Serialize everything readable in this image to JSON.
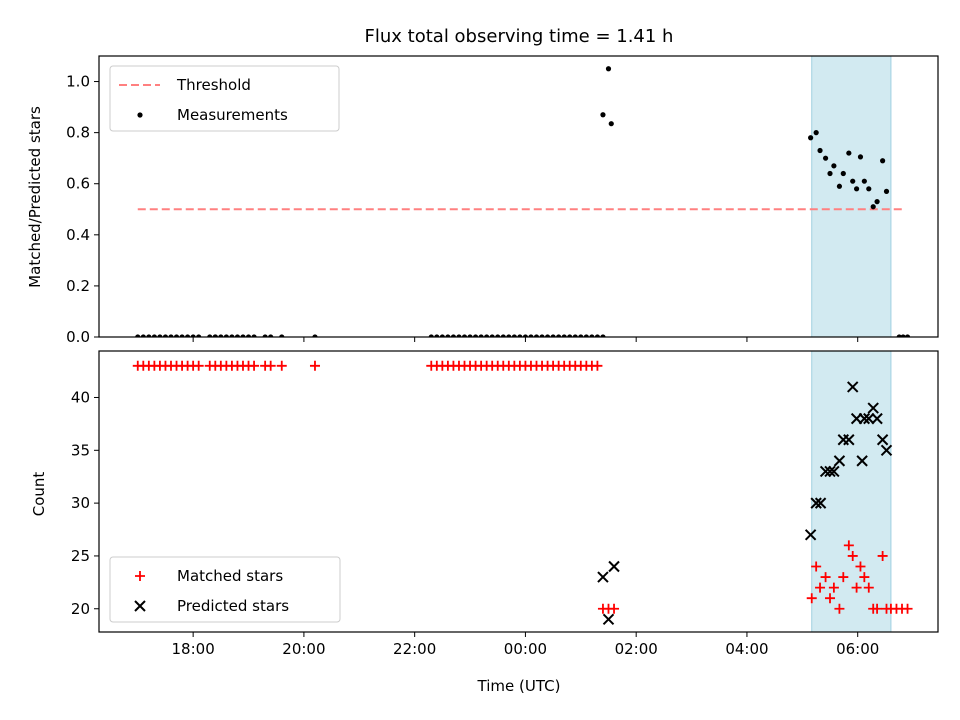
{
  "chart_data": [
    {
      "type": "scatter",
      "title": "Flux total observing time = 1.41 h",
      "ylabel": "Matched/Predicted stars",
      "xlabel": "",
      "x_unit": "hours since 17:00 UTC on first night",
      "xlim": [
        -0.7,
        14.45
      ],
      "ylim": [
        0,
        1.1
      ],
      "yticks": [
        0.0,
        0.2,
        0.4,
        0.6,
        0.8,
        1.0
      ],
      "ytick_labels": [
        "0.0",
        "0.2",
        "0.4",
        "0.6",
        "0.8",
        "1.0"
      ],
      "grid": false,
      "legend_position": "top-left",
      "shaded_region": {
        "x0": 12.17,
        "x1": 13.6,
        "color": "#add8e6"
      },
      "series": [
        {
          "name": "Threshold",
          "style": "dashed-line",
          "color": "#ff8080",
          "points": [
            [
              0.0,
              0.5
            ],
            [
              13.85,
              0.5
            ]
          ]
        },
        {
          "name": "Measurements",
          "style": "dot",
          "color": "#000000",
          "points": [
            [
              0.0,
              0
            ],
            [
              0.1,
              0
            ],
            [
              0.2,
              0
            ],
            [
              0.3,
              0
            ],
            [
              0.4,
              0
            ],
            [
              0.5,
              0
            ],
            [
              0.6,
              0
            ],
            [
              0.7,
              0
            ],
            [
              0.8,
              0
            ],
            [
              0.9,
              0
            ],
            [
              1.0,
              0
            ],
            [
              1.1,
              0
            ],
            [
              1.3,
              0
            ],
            [
              1.4,
              0
            ],
            [
              1.4,
              0
            ],
            [
              1.5,
              0
            ],
            [
              1.6,
              0
            ],
            [
              1.7,
              0
            ],
            [
              1.8,
              0
            ],
            [
              1.9,
              0
            ],
            [
              2.0,
              0
            ],
            [
              2.1,
              0
            ],
            [
              2.3,
              0
            ],
            [
              2.4,
              0
            ],
            [
              2.6,
              0
            ],
            [
              3.2,
              0
            ],
            [
              5.3,
              0
            ],
            [
              5.4,
              0
            ],
            [
              5.5,
              0
            ],
            [
              5.6,
              0
            ],
            [
              5.7,
              0
            ],
            [
              5.8,
              0
            ],
            [
              5.9,
              0
            ],
            [
              6.0,
              0
            ],
            [
              6.1,
              0
            ],
            [
              6.2,
              0
            ],
            [
              6.3,
              0
            ],
            [
              6.4,
              0
            ],
            [
              6.5,
              0
            ],
            [
              6.6,
              0
            ],
            [
              6.7,
              0
            ],
            [
              6.8,
              0
            ],
            [
              6.9,
              0
            ],
            [
              7.0,
              0
            ],
            [
              7.1,
              0
            ],
            [
              7.2,
              0
            ],
            [
              7.3,
              0
            ],
            [
              7.4,
              0
            ],
            [
              7.5,
              0
            ],
            [
              7.6,
              0
            ],
            [
              7.7,
              0
            ],
            [
              7.8,
              0
            ],
            [
              7.9,
              0
            ],
            [
              8.0,
              0
            ],
            [
              8.1,
              0
            ],
            [
              8.2,
              0
            ],
            [
              8.3,
              0
            ],
            [
              8.4,
              0
            ],
            [
              8.4,
              0.87
            ],
            [
              8.5,
              1.05
            ],
            [
              8.55,
              0.835
            ],
            [
              12.15,
              0.78
            ],
            [
              12.25,
              0.8
            ],
            [
              12.32,
              0.73
            ],
            [
              12.42,
              0.7
            ],
            [
              12.5,
              0.64
            ],
            [
              12.57,
              0.67
            ],
            [
              12.67,
              0.59
            ],
            [
              12.74,
              0.64
            ],
            [
              12.84,
              0.72
            ],
            [
              12.91,
              0.61
            ],
            [
              12.98,
              0.58
            ],
            [
              13.05,
              0.705
            ],
            [
              13.12,
              0.61
            ],
            [
              13.2,
              0.58
            ],
            [
              13.28,
              0.51
            ],
            [
              13.35,
              0.53
            ],
            [
              13.45,
              0.69
            ],
            [
              13.52,
              0.57
            ],
            [
              13.75,
              0
            ],
            [
              13.82,
              0
            ],
            [
              13.9,
              0
            ]
          ]
        }
      ]
    },
    {
      "type": "scatter",
      "title": "",
      "ylabel": "Count",
      "xlabel": "Time (UTC)",
      "x_unit": "hours since 17:00 UTC on first night",
      "xlim": [
        -0.7,
        14.45
      ],
      "ylim": [
        17.8,
        44.4
      ],
      "xticks": [
        1,
        3,
        5,
        7,
        9,
        11,
        13
      ],
      "xtick_labels": [
        "18:00",
        "20:00",
        "22:00",
        "00:00",
        "02:00",
        "04:00",
        "06:00"
      ],
      "yticks": [
        20,
        25,
        30,
        35,
        40
      ],
      "ytick_labels": [
        "20",
        "25",
        "30",
        "35",
        "40"
      ],
      "grid": false,
      "legend_position": "bottom-left",
      "shaded_region": {
        "x0": 12.17,
        "x1": 13.6,
        "color": "#add8e6"
      },
      "series": [
        {
          "name": "Matched stars",
          "style": "plus",
          "color": "#ff0000",
          "points": [
            [
              0.0,
              43
            ],
            [
              0.1,
              43
            ],
            [
              0.2,
              43
            ],
            [
              0.3,
              43
            ],
            [
              0.4,
              43
            ],
            [
              0.5,
              43
            ],
            [
              0.6,
              43
            ],
            [
              0.7,
              43
            ],
            [
              0.8,
              43
            ],
            [
              0.9,
              43
            ],
            [
              1.0,
              43
            ],
            [
              1.1,
              43
            ],
            [
              1.3,
              43
            ],
            [
              1.4,
              43
            ],
            [
              1.5,
              43
            ],
            [
              1.6,
              43
            ],
            [
              1.7,
              43
            ],
            [
              1.8,
              43
            ],
            [
              1.9,
              43
            ],
            [
              2.0,
              43
            ],
            [
              2.1,
              43
            ],
            [
              2.3,
              43
            ],
            [
              2.4,
              43
            ],
            [
              2.6,
              43
            ],
            [
              3.2,
              43
            ],
            [
              5.3,
              43
            ],
            [
              5.4,
              43
            ],
            [
              5.5,
              43
            ],
            [
              5.6,
              43
            ],
            [
              5.7,
              43
            ],
            [
              5.8,
              43
            ],
            [
              5.9,
              43
            ],
            [
              6.0,
              43
            ],
            [
              6.1,
              43
            ],
            [
              6.2,
              43
            ],
            [
              6.3,
              43
            ],
            [
              6.4,
              43
            ],
            [
              6.5,
              43
            ],
            [
              6.6,
              43
            ],
            [
              6.7,
              43
            ],
            [
              6.8,
              43
            ],
            [
              6.9,
              43
            ],
            [
              7.0,
              43
            ],
            [
              7.1,
              43
            ],
            [
              7.2,
              43
            ],
            [
              7.3,
              43
            ],
            [
              7.4,
              43
            ],
            [
              7.5,
              43
            ],
            [
              7.6,
              43
            ],
            [
              7.7,
              43
            ],
            [
              7.8,
              43
            ],
            [
              7.9,
              43
            ],
            [
              8.0,
              43
            ],
            [
              8.1,
              43
            ],
            [
              8.2,
              43
            ],
            [
              8.3,
              43
            ],
            [
              8.4,
              20
            ],
            [
              8.5,
              20
            ],
            [
              8.6,
              20
            ],
            [
              12.17,
              21
            ],
            [
              12.25,
              24
            ],
            [
              12.32,
              22
            ],
            [
              12.42,
              23
            ],
            [
              12.5,
              21
            ],
            [
              12.57,
              22
            ],
            [
              12.67,
              20
            ],
            [
              12.74,
              23
            ],
            [
              12.84,
              26
            ],
            [
              12.91,
              25
            ],
            [
              12.98,
              22
            ],
            [
              13.05,
              24
            ],
            [
              13.12,
              23
            ],
            [
              13.2,
              22
            ],
            [
              13.28,
              20
            ],
            [
              13.35,
              20
            ],
            [
              13.45,
              25
            ],
            [
              13.52,
              20
            ],
            [
              13.6,
              20
            ],
            [
              13.7,
              20
            ],
            [
              13.8,
              20
            ],
            [
              13.9,
              20
            ]
          ]
        },
        {
          "name": "Predicted stars",
          "style": "x",
          "color": "#000000",
          "points": [
            [
              8.4,
              23
            ],
            [
              8.5,
              19
            ],
            [
              8.6,
              24
            ],
            [
              12.15,
              27
            ],
            [
              12.25,
              30
            ],
            [
              12.33,
              30
            ],
            [
              12.42,
              33
            ],
            [
              12.5,
              33
            ],
            [
              12.57,
              33
            ],
            [
              12.67,
              34
            ],
            [
              12.74,
              36
            ],
            [
              12.84,
              36
            ],
            [
              12.91,
              41
            ],
            [
              12.98,
              38
            ],
            [
              13.08,
              34
            ],
            [
              13.12,
              38
            ],
            [
              13.2,
              38
            ],
            [
              13.28,
              39
            ],
            [
              13.35,
              38
            ],
            [
              13.45,
              36
            ],
            [
              13.52,
              35
            ]
          ]
        }
      ]
    }
  ]
}
